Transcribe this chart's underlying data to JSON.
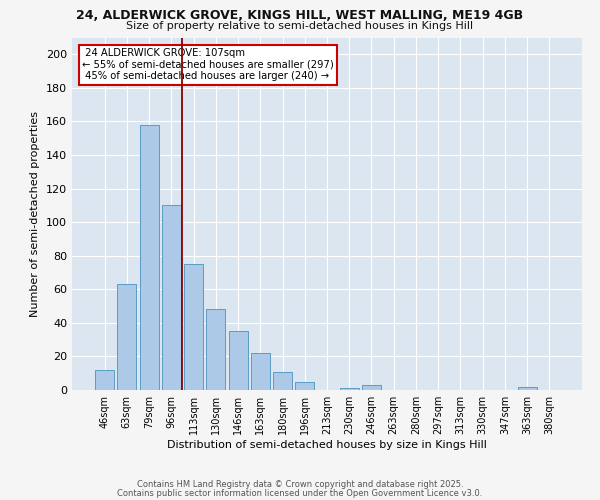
{
  "title_line1": "24, ALDERWICK GROVE, KINGS HILL, WEST MALLING, ME19 4GB",
  "title_line2": "Size of property relative to semi-detached houses in Kings Hill",
  "xlabel": "Distribution of semi-detached houses by size in Kings Hill",
  "ylabel": "Number of semi-detached properties",
  "bin_labels": [
    "46sqm",
    "63sqm",
    "79sqm",
    "96sqm",
    "113sqm",
    "130sqm",
    "146sqm",
    "163sqm",
    "180sqm",
    "196sqm",
    "213sqm",
    "230sqm",
    "246sqm",
    "263sqm",
    "280sqm",
    "297sqm",
    "313sqm",
    "330sqm",
    "347sqm",
    "363sqm",
    "380sqm"
  ],
  "bar_values": [
    12,
    63,
    158,
    110,
    75,
    48,
    35,
    22,
    11,
    5,
    0,
    1,
    3,
    0,
    0,
    0,
    0,
    0,
    0,
    2,
    0
  ],
  "bar_color": "#adc9e8",
  "bar_edge_color": "#5a9cc5",
  "background_color": "#dce6f0",
  "grid_color": "#ffffff",
  "marker_label": "24 ALDERWICK GROVE: 107sqm",
  "marker_pct_smaller": "55% of semi-detached houses are smaller (297)",
  "marker_pct_larger": "45% of semi-detached houses are larger (240)",
  "marker_line_color": "#8b0000",
  "annotation_box_edge_color": "#cc0000",
  "ylim": [
    0,
    210
  ],
  "yticks": [
    0,
    20,
    40,
    60,
    80,
    100,
    120,
    140,
    160,
    180,
    200
  ],
  "footnote1": "Contains HM Land Registry data © Crown copyright and database right 2025.",
  "footnote2": "Contains public sector information licensed under the Open Government Licence v3.0.",
  "fig_bg": "#f5f5f5"
}
